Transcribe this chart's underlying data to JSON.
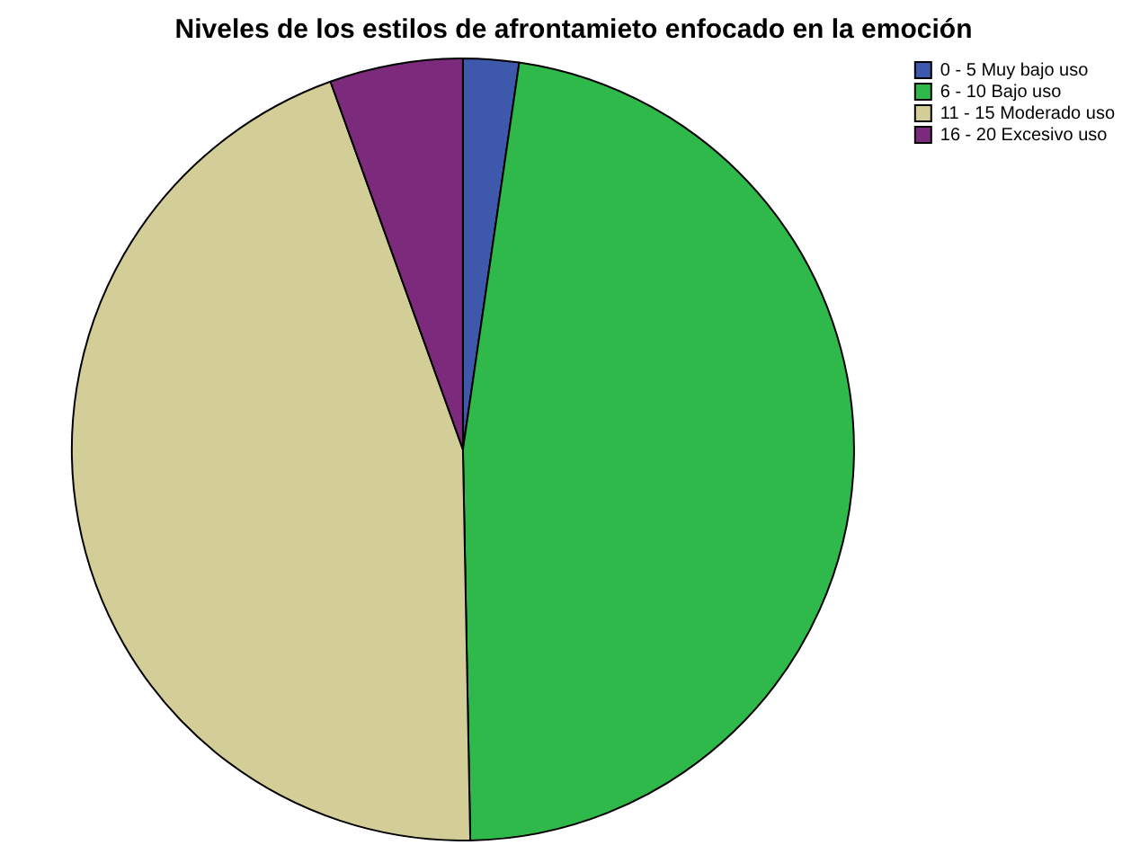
{
  "chart_data": {
    "type": "pie",
    "title": "Niveles de los estilos de afrontamieto enfocado en la emoción",
    "categories": [
      "0 - 5 Muy bajo uso",
      "6 - 10 Bajo uso",
      "11 - 15 Moderado uso",
      "16 - 20 Excesivo uso"
    ],
    "values": [
      2.3,
      47.4,
      44.8,
      5.5
    ],
    "colors": [
      "#3e58ac",
      "#2fb94a",
      "#d3ce97",
      "#7b2a7c"
    ],
    "legend": "top right"
  }
}
